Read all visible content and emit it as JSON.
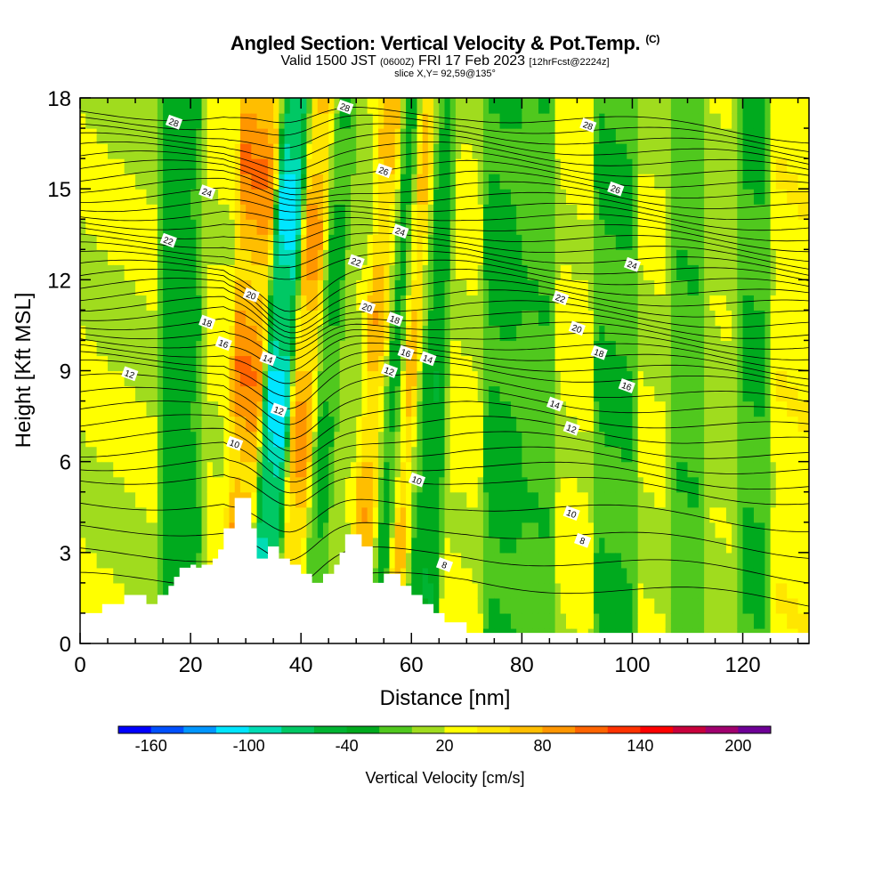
{
  "title": {
    "main": "Angled Section: Vertical Velocity & Pot.Temp.",
    "main_unit": "(C)",
    "valid_prefix": "Valid 1500 JST",
    "valid_z": "(0600Z)",
    "valid_date": "FRI 17 Feb 2023",
    "fcst": "[12hrFcst@2224z]",
    "slice": "slice X,Y= 92,59@135°"
  },
  "chart_data": {
    "type": "heatmap",
    "xlabel": "Distance [nm]",
    "ylabel": "Height [Kft MSL]",
    "xlim": [
      0,
      132
    ],
    "ylim": [
      0,
      18
    ],
    "x_ticks": [
      0,
      20,
      40,
      60,
      80,
      100,
      120
    ],
    "y_ticks": [
      0,
      3,
      6,
      9,
      12,
      15,
      18
    ],
    "colorbar": {
      "label": "Vertical Velocity [cm/s]",
      "tick_labels": [
        "-160",
        "-100",
        "-40",
        "20",
        "80",
        "140",
        "200"
      ],
      "bin_edges": [
        -180,
        -160,
        -140,
        -120,
        -100,
        -80,
        -60,
        -40,
        -20,
        0,
        20,
        40,
        60,
        80,
        100,
        120,
        140,
        160,
        180,
        200,
        220
      ],
      "colors": [
        "#0000ff",
        "#0050ff",
        "#0096ff",
        "#00e6ff",
        "#00dcb4",
        "#00c864",
        "#00b432",
        "#00aa1e",
        "#50c81e",
        "#a0dc1e",
        "#ffff00",
        "#ffe600",
        "#ffbe00",
        "#ff9600",
        "#ff6400",
        "#ff3200",
        "#ff0000",
        "#c8003c",
        "#a0006e",
        "#6e0096"
      ]
    },
    "velocity_features": [
      {
        "x_center": 9,
        "value": 25
      },
      {
        "x_center": 20,
        "value": -35
      },
      {
        "x_center": 24,
        "value": 30
      },
      {
        "x_center": 31,
        "value": 100
      },
      {
        "x_center": 36,
        "value": -110
      },
      {
        "x_center": 41,
        "value": 90
      },
      {
        "x_center": 45,
        "value": -30
      },
      {
        "x_center": 49,
        "value": 20
      },
      {
        "x_center": 54,
        "value": 80
      },
      {
        "x_center": 57,
        "value": -50
      },
      {
        "x_center": 60,
        "value": 90
      },
      {
        "x_center": 63,
        "value": -40
      },
      {
        "x_center": 70,
        "value": 30
      },
      {
        "x_center": 76,
        "value": -30
      },
      {
        "x_center": 83,
        "value": -20
      },
      {
        "x_center": 89,
        "value": 30
      },
      {
        "x_center": 97,
        "value": -25
      },
      {
        "x_center": 104,
        "value": 25
      },
      {
        "x_center": 110,
        "value": -20
      },
      {
        "x_center": 116,
        "value": 20
      },
      {
        "x_center": 122,
        "value": -25
      },
      {
        "x_center": 128,
        "value": 40
      }
    ],
    "isotherm_labels": [
      {
        "text": "28",
        "x": 17,
        "y": 17.2
      },
      {
        "text": "28",
        "x": 48,
        "y": 17.7
      },
      {
        "text": "28",
        "x": 92,
        "y": 17.1
      },
      {
        "text": "26",
        "x": 55,
        "y": 15.6
      },
      {
        "text": "26",
        "x": 97,
        "y": 15.0
      },
      {
        "text": "24",
        "x": 23,
        "y": 14.9
      },
      {
        "text": "24",
        "x": 58,
        "y": 13.6
      },
      {
        "text": "24",
        "x": 100,
        "y": 12.5
      },
      {
        "text": "22",
        "x": 16,
        "y": 13.3
      },
      {
        "text": "22",
        "x": 50,
        "y": 12.6
      },
      {
        "text": "22",
        "x": 87,
        "y": 11.4
      },
      {
        "text": "20",
        "x": 31,
        "y": 11.5
      },
      {
        "text": "20",
        "x": 52,
        "y": 11.1
      },
      {
        "text": "20",
        "x": 90,
        "y": 10.4
      },
      {
        "text": "18",
        "x": 23,
        "y": 10.6
      },
      {
        "text": "18",
        "x": 57,
        "y": 10.7
      },
      {
        "text": "18",
        "x": 94,
        "y": 9.6
      },
      {
        "text": "16",
        "x": 26,
        "y": 9.9
      },
      {
        "text": "16",
        "x": 59,
        "y": 9.6
      },
      {
        "text": "16",
        "x": 99,
        "y": 8.5
      },
      {
        "text": "14",
        "x": 34,
        "y": 9.4
      },
      {
        "text": "14",
        "x": 63,
        "y": 9.4
      },
      {
        "text": "14",
        "x": 86,
        "y": 7.9
      },
      {
        "text": "12",
        "x": 9,
        "y": 8.9
      },
      {
        "text": "12",
        "x": 36,
        "y": 7.7
      },
      {
        "text": "12",
        "x": 56,
        "y": 9.0
      },
      {
        "text": "12",
        "x": 89,
        "y": 7.1
      },
      {
        "text": "10",
        "x": 28,
        "y": 6.6
      },
      {
        "text": "10",
        "x": 61,
        "y": 5.4
      },
      {
        "text": "10",
        "x": 89,
        "y": 4.3
      },
      {
        "text": "8",
        "x": 91,
        "y": 3.4
      },
      {
        "text": "8",
        "x": 66,
        "y": 2.6
      }
    ],
    "terrain": [
      [
        0,
        1.0
      ],
      [
        4,
        1.0
      ],
      [
        4,
        1.3
      ],
      [
        8,
        1.3
      ],
      [
        8,
        1.6
      ],
      [
        12,
        1.6
      ],
      [
        12,
        1.3
      ],
      [
        14,
        1.3
      ],
      [
        14,
        1.6
      ],
      [
        16,
        1.6
      ],
      [
        16,
        1.9
      ],
      [
        17,
        1.9
      ],
      [
        17,
        2.2
      ],
      [
        18,
        2.2
      ],
      [
        18,
        2.5
      ],
      [
        20,
        2.5
      ],
      [
        20,
        2.6
      ],
      [
        21,
        2.6
      ],
      [
        21,
        2.5
      ],
      [
        22,
        2.5
      ],
      [
        22,
        2.6
      ],
      [
        24,
        2.6
      ],
      [
        24,
        2.8
      ],
      [
        25,
        2.8
      ],
      [
        25,
        3.1
      ],
      [
        26,
        3.1
      ],
      [
        26,
        3.8
      ],
      [
        28,
        3.8
      ],
      [
        28,
        4.8
      ],
      [
        31,
        4.8
      ],
      [
        31,
        3.8
      ],
      [
        32,
        3.8
      ],
      [
        32,
        2.8
      ],
      [
        34,
        2.8
      ],
      [
        34,
        3.2
      ],
      [
        36,
        3.2
      ],
      [
        36,
        2.8
      ],
      [
        38,
        2.8
      ],
      [
        38,
        2.6
      ],
      [
        40,
        2.6
      ],
      [
        40,
        2.3
      ],
      [
        42,
        2.3
      ],
      [
        42,
        2.0
      ],
      [
        44,
        2.0
      ],
      [
        44,
        2.3
      ],
      [
        46,
        2.3
      ],
      [
        46,
        2.6
      ],
      [
        47,
        2.6
      ],
      [
        47,
        3.0
      ],
      [
        48,
        3.0
      ],
      [
        48,
        3.6
      ],
      [
        51,
        3.6
      ],
      [
        51,
        3.2
      ],
      [
        53,
        3.2
      ],
      [
        53,
        2.0
      ],
      [
        55,
        2.0
      ],
      [
        55,
        2.3
      ],
      [
        58,
        2.3
      ],
      [
        58,
        1.9
      ],
      [
        60,
        1.9
      ],
      [
        60,
        1.6
      ],
      [
        62,
        1.6
      ],
      [
        62,
        1.3
      ],
      [
        64,
        1.3
      ],
      [
        64,
        1.0
      ],
      [
        66,
        1.0
      ],
      [
        66,
        0.7
      ],
      [
        70,
        0.7
      ],
      [
        70,
        0.35
      ],
      [
        132,
        0.35
      ]
    ]
  }
}
